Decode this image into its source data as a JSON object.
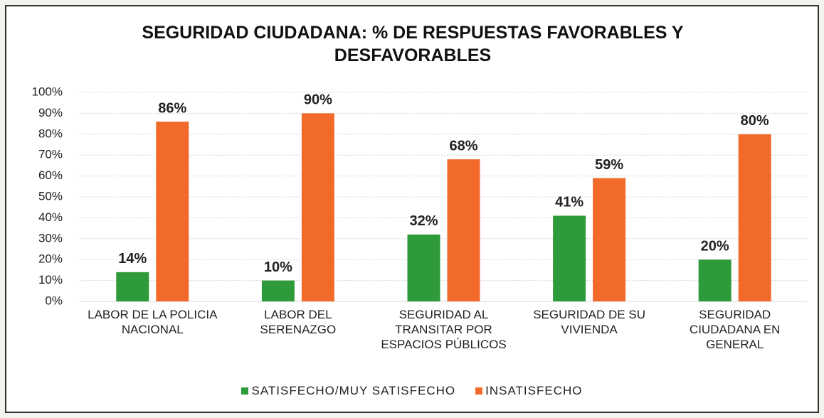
{
  "chart_data": {
    "type": "bar",
    "title": "SEGURIDAD CIUDADANA: % DE RESPUESTAS FAVORABLES Y DESFAVORABLES",
    "categories": [
      "LABOR DE LA POLICIA NACIONAL",
      "LABOR DEL SERENAZGO",
      "SEGURIDAD AL TRANSITAR POR ESPACIOS PÚBLICOS",
      "SEGURIDAD DE SU VIVIENDA",
      "SEGURIDAD CIUDADANA EN GENERAL"
    ],
    "series": [
      {
        "name": "SATISFECHO/MUY SATISFECHO",
        "color": "#2e9a3a",
        "values": [
          14,
          10,
          32,
          41,
          20
        ],
        "value_labels": [
          "14%",
          "10%",
          "32%",
          "41%",
          "20%"
        ]
      },
      {
        "name": "INSATISFECHO",
        "color": "#f26a2a",
        "values": [
          86,
          90,
          68,
          59,
          80
        ],
        "value_labels": [
          "86%",
          "90%",
          "68%",
          "59%",
          "80%"
        ]
      }
    ],
    "ylim": [
      0,
      100
    ],
    "yticks": [
      {
        "value": 0,
        "label": "0%"
      },
      {
        "value": 10,
        "label": "10%"
      },
      {
        "value": 20,
        "label": "20%"
      },
      {
        "value": 30,
        "label": "30%"
      },
      {
        "value": 40,
        "label": "40%"
      },
      {
        "value": 50,
        "label": "50%"
      },
      {
        "value": 60,
        "label": "60%"
      },
      {
        "value": 70,
        "label": "70%"
      },
      {
        "value": 80,
        "label": "80%"
      },
      {
        "value": 90,
        "label": "90%"
      },
      {
        "value": 100,
        "label": "100%"
      }
    ],
    "grid": true,
    "legend": "bottom"
  }
}
